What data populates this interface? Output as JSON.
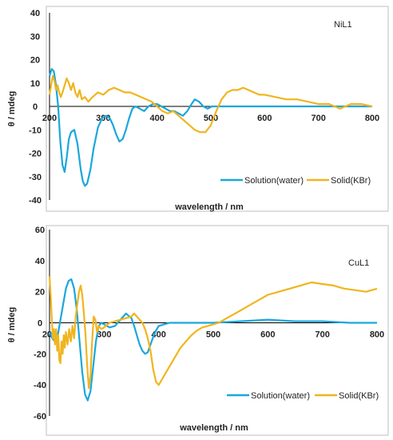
{
  "colors": {
    "solution": "#1aa7dc",
    "solid": "#f0b51e",
    "axis": "#000000"
  },
  "chart_data": [
    {
      "type": "line",
      "label": "NiL1",
      "xlabel": "wavelength / nm",
      "ylabel": "θ / mdeg",
      "xlim": [
        200,
        800
      ],
      "ylim": [
        -40,
        40
      ],
      "xticks": [
        "200",
        "300",
        "400",
        "500",
        "600",
        "700",
        "800"
      ],
      "yticks": [
        "40",
        "30",
        "20",
        "10",
        "0",
        "-10",
        "-20",
        "-30",
        "-40"
      ],
      "legend_position": "bottom-right",
      "series": [
        {
          "name": "Solution(water)",
          "color_key": "solution",
          "x": [
            200,
            204,
            208,
            212,
            216,
            220,
            224,
            228,
            232,
            236,
            240,
            246,
            252,
            258,
            262,
            266,
            270,
            276,
            282,
            290,
            298,
            305,
            312,
            318,
            324,
            330,
            336,
            342,
            348,
            354,
            360,
            368,
            376,
            384,
            392,
            400,
            408,
            416,
            424,
            432,
            440,
            448,
            456,
            464,
            470,
            478,
            486,
            494,
            502,
            510,
            520,
            540,
            600,
            700,
            800
          ],
          "y": [
            13,
            16,
            15,
            9,
            0,
            -15,
            -25,
            -28,
            -22,
            -14,
            -11,
            -10,
            -16,
            -27,
            -32,
            -34,
            -33,
            -27,
            -18,
            -9,
            -5,
            -4,
            -5,
            -8,
            -12,
            -15,
            -14,
            -10,
            -5,
            -1,
            0,
            -1,
            -2,
            0,
            1,
            1,
            0,
            -1,
            -2,
            -2,
            -3,
            -4,
            -2,
            1,
            3,
            2,
            0,
            -1,
            0,
            0,
            0,
            0,
            0,
            0,
            0
          ]
        },
        {
          "name": "Solid(KBr)",
          "color_key": "solid",
          "x": [
            200,
            203,
            206,
            209,
            212,
            215,
            218,
            221,
            224,
            228,
            232,
            236,
            240,
            244,
            248,
            252,
            256,
            260,
            266,
            272,
            280,
            290,
            300,
            310,
            320,
            330,
            340,
            350,
            360,
            370,
            380,
            390,
            400,
            410,
            420,
            430,
            440,
            450,
            460,
            470,
            480,
            490,
            500,
            510,
            520,
            530,
            540,
            550,
            560,
            570,
            580,
            590,
            600,
            620,
            640,
            660,
            680,
            700,
            720,
            740,
            760,
            780,
            800
          ],
          "y": [
            5,
            9,
            13,
            11,
            7,
            9,
            6,
            4,
            6,
            9,
            12,
            10,
            7,
            10,
            6,
            4,
            7,
            3,
            4,
            2,
            4,
            6,
            5,
            7,
            8,
            7,
            6,
            6,
            5,
            4,
            3,
            2,
            0,
            -2,
            -3,
            -2,
            -4,
            -6,
            -8,
            -10,
            -11,
            -11,
            -8,
            -2,
            3,
            6,
            7,
            7,
            8,
            7,
            6,
            5,
            5,
            4,
            3,
            3,
            2,
            1,
            1,
            -1,
            1,
            1,
            0
          ]
        }
      ]
    },
    {
      "type": "line",
      "label": "CuL1",
      "xlabel": "wavelength / nm",
      "ylabel": "θ / mdeg",
      "xlim": [
        200,
        800
      ],
      "ylim": [
        -60,
        60
      ],
      "xticks": [
        "200",
        "300",
        "400",
        "500",
        "600",
        "700",
        "800"
      ],
      "yticks": [
        "60",
        "40",
        "20",
        "0",
        "-20",
        "-40",
        "-60"
      ],
      "legend_position": "bottom-right",
      "series": [
        {
          "name": "Solution(water)",
          "color_key": "solution",
          "x": [
            200,
            205,
            210,
            215,
            220,
            225,
            230,
            235,
            240,
            245,
            250,
            255,
            260,
            265,
            270,
            275,
            280,
            285,
            290,
            295,
            300,
            310,
            320,
            330,
            340,
            350,
            355,
            360,
            365,
            370,
            375,
            380,
            385,
            390,
            395,
            400,
            410,
            420,
            440,
            460,
            500,
            550,
            600,
            650,
            700,
            750,
            800
          ],
          "y": [
            -6,
            -10,
            -12,
            -8,
            2,
            12,
            22,
            27,
            28,
            22,
            8,
            -12,
            -32,
            -46,
            -50,
            -44,
            -28,
            -12,
            -2,
            0,
            -1,
            -3,
            -2,
            2,
            6,
            3,
            -2,
            -8,
            -14,
            -18,
            -20,
            -19,
            -14,
            -9,
            -5,
            -2,
            -1,
            0,
            0,
            0,
            0,
            1,
            2,
            1,
            1,
            0,
            0
          ]
        },
        {
          "name": "Solid(KBr)",
          "color_key": "solid",
          "x": [
            200,
            202,
            204,
            206,
            208,
            210,
            212,
            214,
            216,
            218,
            220,
            222,
            224,
            226,
            228,
            230,
            233,
            236,
            239,
            242,
            245,
            248,
            251,
            254,
            257,
            260,
            263,
            266,
            269,
            272,
            275,
            278,
            281,
            284,
            287,
            290,
            295,
            300,
            310,
            320,
            330,
            340,
            350,
            355,
            360,
            365,
            370,
            375,
            380,
            385,
            390,
            395,
            400,
            410,
            420,
            430,
            440,
            450,
            460,
            470,
            480,
            490,
            500,
            510,
            520,
            530,
            540,
            550,
            560,
            570,
            580,
            590,
            600,
            620,
            640,
            660,
            680,
            700,
            720,
            740,
            760,
            780,
            800
          ],
          "y": [
            30,
            18,
            4,
            -10,
            -4,
            -14,
            -4,
            -18,
            -8,
            -24,
            -26,
            -12,
            -20,
            -8,
            -16,
            -6,
            -14,
            -4,
            -12,
            -2,
            -10,
            4,
            12,
            20,
            24,
            18,
            6,
            -8,
            -28,
            -42,
            -34,
            -12,
            4,
            2,
            -6,
            -2,
            -4,
            -3,
            0,
            1,
            2,
            3,
            4,
            6,
            4,
            2,
            0,
            -4,
            -10,
            -18,
            -30,
            -38,
            -40,
            -34,
            -28,
            -22,
            -16,
            -12,
            -8,
            -5,
            -3,
            -2,
            -1,
            0,
            2,
            4,
            6,
            8,
            10,
            12,
            14,
            16,
            18,
            20,
            22,
            24,
            26,
            25,
            24,
            22,
            21,
            20,
            22
          ]
        }
      ]
    }
  ]
}
